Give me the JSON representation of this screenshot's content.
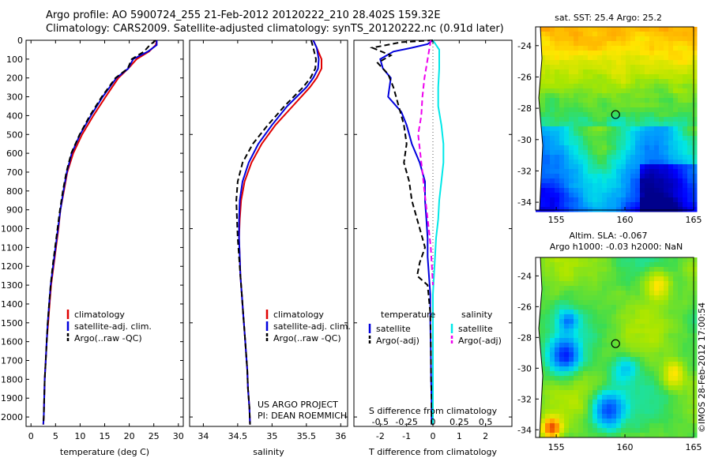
{
  "header": {
    "line1": "Argo profile: AO 5900724_255 21-Feb-2012 20120222_210 28.402S 159.32E",
    "line2": "Climatology: CARS2009. Satellite-adjusted climatology: synTS_20120222.nc (0.91d later)"
  },
  "project": {
    "line1": "US ARGO PROJECT",
    "line2": "PI: DEAN ROEMMICH"
  },
  "credit": "©IMOS 28-Feb-2012 17:00:54",
  "colors": {
    "climatology": "#e00000",
    "satellite": "#0000dd",
    "argo": "#000000",
    "salinity_satellite": "#00e8e8",
    "salinity_argo": "#ee00ee"
  },
  "chart_data": [
    {
      "type": "line",
      "id": "temperature",
      "xlabel": "temperature (deg C)",
      "xlim": [
        -1,
        31
      ],
      "ylim": [
        2050,
        0
      ],
      "xticks": [
        0,
        5,
        10,
        15,
        20,
        25,
        30
      ],
      "yticks": [
        0,
        100,
        200,
        300,
        400,
        500,
        600,
        700,
        800,
        900,
        1000,
        1100,
        1200,
        1300,
        1400,
        1500,
        1600,
        1700,
        1800,
        1900,
        2000
      ],
      "legend": [
        "climatology",
        "satellite-adj. clim.",
        "Argo(..raw -QC)"
      ],
      "legend_position": "lower-center",
      "series": [
        {
          "name": "climatology",
          "style": "solid",
          "color": "#e00000",
          "x": [
            25.6,
            25.4,
            24,
            21.5,
            19.8,
            17.8,
            15.2,
            12.7,
            10.4,
            8.6,
            7.4,
            6.7,
            6.0,
            5.6,
            5.1,
            4.6,
            4.1,
            3.8,
            3.5,
            3.2,
            3.0,
            2.8,
            2.7,
            2.6,
            2.5
          ],
          "y": [
            0,
            25,
            60,
            100,
            150,
            200,
            300,
            400,
            500,
            600,
            700,
            800,
            900,
            1000,
            1100,
            1200,
            1300,
            1400,
            1500,
            1600,
            1700,
            1800,
            1900,
            2000,
            2040
          ]
        },
        {
          "name": "satellite-adj. clim.",
          "style": "solid",
          "color": "#0000dd",
          "x": [
            25.6,
            25.6,
            23.8,
            20.8,
            19.8,
            17.4,
            14.6,
            12.2,
            10.0,
            8.3,
            7.3,
            6.6,
            6.0,
            5.5,
            5.0,
            4.5,
            4.0,
            3.7,
            3.4,
            3.2,
            3.0,
            2.8,
            2.7,
            2.6,
            2.5
          ],
          "y": [
            0,
            25,
            60,
            100,
            150,
            200,
            300,
            400,
            500,
            600,
            700,
            800,
            900,
            1000,
            1100,
            1200,
            1300,
            1400,
            1500,
            1600,
            1700,
            1800,
            1900,
            2000,
            2040
          ]
        },
        {
          "name": "Argo(..raw -QC)",
          "style": "dashed",
          "color": "#000000",
          "x": [
            25.4,
            24.2,
            23,
            20.5,
            19.7,
            17.2,
            14.4,
            12.0,
            9.9,
            8.2,
            7.2,
            6.5,
            5.9,
            5.4,
            4.9,
            4.4,
            4.0,
            3.7,
            3.4,
            3.2,
            3.0,
            2.8,
            2.7,
            2.6,
            2.5
          ],
          "y": [
            0,
            25,
            60,
            100,
            150,
            200,
            300,
            400,
            500,
            600,
            700,
            800,
            900,
            1000,
            1100,
            1200,
            1300,
            1400,
            1500,
            1600,
            1700,
            1800,
            1900,
            2000,
            2040
          ]
        }
      ]
    },
    {
      "type": "line",
      "id": "salinity",
      "xlabel": "salinity",
      "xlim": [
        33.8,
        36.1
      ],
      "ylim": [
        2050,
        0
      ],
      "xticks": [
        34,
        34.5,
        35,
        35.5,
        36
      ],
      "yticks": [],
      "legend": [
        "climatology",
        "satellite-adj. clim.",
        "Argo(..raw -QC)"
      ],
      "legend_position": "lower-center",
      "series": [
        {
          "name": "climatology",
          "style": "solid",
          "color": "#e00000",
          "x": [
            35.6,
            35.65,
            35.72,
            35.72,
            35.65,
            35.55,
            35.3,
            35.05,
            34.85,
            34.7,
            34.6,
            34.55,
            34.53,
            34.52,
            34.53,
            34.54,
            34.56,
            34.58,
            34.6,
            34.62,
            34.64,
            34.65,
            34.67,
            34.68
          ],
          "y": [
            0,
            40,
            100,
            150,
            200,
            250,
            350,
            450,
            550,
            650,
            750,
            850,
            950,
            1050,
            1150,
            1250,
            1350,
            1450,
            1550,
            1650,
            1750,
            1850,
            1950,
            2040
          ]
        },
        {
          "name": "satellite-adj. clim.",
          "style": "solid",
          "color": "#0000dd",
          "x": [
            35.6,
            35.65,
            35.68,
            35.67,
            35.6,
            35.5,
            35.22,
            35.0,
            34.8,
            34.66,
            34.57,
            34.53,
            34.52,
            34.52,
            34.53,
            34.54,
            34.56,
            34.58,
            34.6,
            34.62,
            34.64,
            34.65,
            34.67,
            34.68
          ],
          "y": [
            0,
            40,
            100,
            150,
            200,
            250,
            350,
            450,
            550,
            650,
            750,
            850,
            950,
            1050,
            1150,
            1250,
            1350,
            1450,
            1550,
            1650,
            1750,
            1850,
            1950,
            2040
          ]
        },
        {
          "name": "Argo(..raw -QC)",
          "style": "dashed",
          "color": "#000000",
          "x": [
            35.57,
            35.6,
            35.64,
            35.63,
            35.56,
            35.45,
            35.18,
            34.94,
            34.72,
            34.57,
            34.5,
            34.48,
            34.49,
            34.5,
            34.52,
            34.54,
            34.56,
            34.58,
            34.6,
            34.62,
            34.64,
            34.65,
            34.67,
            34.68
          ],
          "y": [
            0,
            40,
            100,
            150,
            200,
            250,
            350,
            450,
            550,
            650,
            750,
            850,
            950,
            1050,
            1150,
            1250,
            1350,
            1450,
            1550,
            1650,
            1750,
            1850,
            1950,
            2040
          ]
        }
      ]
    },
    {
      "type": "line",
      "id": "difference",
      "xlabel": "T difference from climatology",
      "x2label": "S difference from climatology",
      "xlim": [
        -3,
        3
      ],
      "ylim": [
        2050,
        0
      ],
      "xticks": [
        -2,
        -1,
        0,
        1,
        2
      ],
      "x2ticks": [
        "-0.5",
        "-0.25",
        "0",
        "0.25",
        "0.5"
      ],
      "yticks": [],
      "legend_groups": [
        {
          "title": "temperature",
          "entries": [
            "satellite",
            "Argo(-adj)"
          ]
        },
        {
          "title": "salinity",
          "entries": [
            "satellite",
            "Argo(-adj)"
          ]
        }
      ],
      "series": [
        {
          "name": "temperature satellite",
          "style": "solid",
          "color": "#0000dd",
          "x": [
            0,
            -0.2,
            -0.8,
            -1.5,
            -2.0,
            -1.9,
            -1.6,
            -1.7,
            -1.2,
            -1.0,
            -0.8,
            -0.5,
            -0.3,
            -0.3,
            -0.25,
            -0.2,
            -0.2,
            -0.15,
            -0.1,
            -0.1,
            -0.08,
            -0.07,
            -0.05,
            -0.05,
            -0.05
          ],
          "y": [
            0,
            20,
            40,
            60,
            100,
            150,
            200,
            300,
            380,
            450,
            550,
            650,
            750,
            850,
            950,
            1050,
            1150,
            1250,
            1350,
            1500,
            1650,
            1800,
            1900,
            2000,
            2040
          ]
        },
        {
          "name": "temperature Argo(-adj)",
          "style": "dashed",
          "color": "#000000",
          "x": [
            0,
            -1.2,
            -2.3,
            -1.6,
            -2.1,
            -1.7,
            -1.5,
            -1.3,
            -1.1,
            -1.0,
            -1.1,
            -0.9,
            -0.8,
            -0.6,
            -0.4,
            -0.3,
            -0.5,
            -0.6,
            -0.2,
            -0.1,
            -0.08,
            -0.07,
            -0.05,
            -0.05,
            -0.05
          ],
          "y": [
            0,
            10,
            40,
            80,
            120,
            180,
            250,
            350,
            450,
            550,
            650,
            750,
            850,
            950,
            1050,
            1100,
            1180,
            1250,
            1300,
            1450,
            1600,
            1800,
            1900,
            2000,
            2040
          ]
        },
        {
          "name": "salinity satellite",
          "style": "solid",
          "color": "#00e8e8",
          "x": [
            0,
            0.06,
            0.06,
            0.05,
            0.05,
            0.08,
            0.1,
            0.1,
            0.08,
            0.06,
            0.05,
            0.03,
            0.02,
            0.01,
            0,
            0,
            0,
            0,
            0,
            0,
            0
          ],
          "y": [
            0,
            50,
            150,
            250,
            350,
            450,
            550,
            650,
            750,
            850,
            950,
            1050,
            1150,
            1250,
            1350,
            1450,
            1550,
            1650,
            1800,
            1950,
            2040
          ]
        },
        {
          "name": "salinity Argo(-adj)",
          "style": "dashed",
          "color": "#ee00ee",
          "x": [
            -0.02,
            -0.05,
            -0.08,
            -0.1,
            -0.11,
            -0.14,
            -0.12,
            -0.1,
            -0.08,
            -0.06,
            -0.04,
            -0.02,
            -0.01,
            0
          ],
          "y": [
            0,
            100,
            200,
            300,
            400,
            500,
            600,
            700,
            800,
            900,
            1000,
            1100,
            1200,
            1300
          ]
        }
      ]
    },
    {
      "type": "heatmap",
      "id": "sst-map",
      "title": "sat. SST: 25.4 Argo: 25.2",
      "xlim": [
        153.5,
        165
      ],
      "ylim": [
        -34.5,
        -22.8
      ],
      "xticks": [
        155,
        160,
        165
      ],
      "yticks": [
        -24,
        -26,
        -28,
        -30,
        -32,
        -34
      ],
      "marker": {
        "lon": 159.32,
        "lat": -28.402
      }
    },
    {
      "type": "heatmap",
      "id": "sla-map",
      "title": "Altim. SLA: -0.067",
      "subtitle": "Argo h1000: -0.03 h2000: NaN",
      "xlim": [
        153.5,
        165
      ],
      "ylim": [
        -34.5,
        -22.8
      ],
      "xticks": [
        155,
        160,
        165
      ],
      "yticks": [
        -24,
        -26,
        -28,
        -30,
        -32,
        -34
      ],
      "marker": {
        "lon": 159.32,
        "lat": -28.402
      }
    }
  ]
}
